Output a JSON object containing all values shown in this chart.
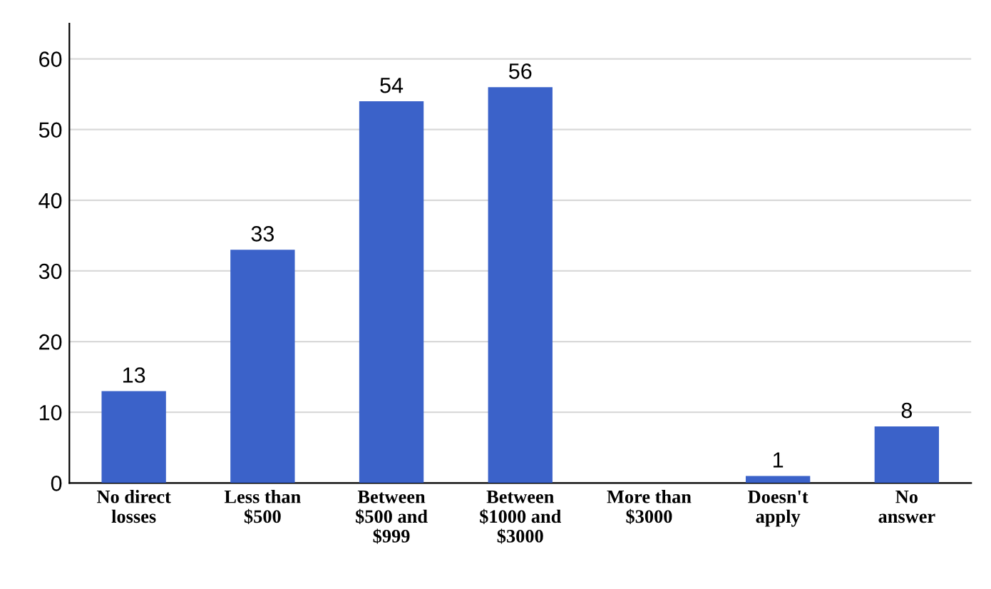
{
  "chart_data": {
    "type": "bar",
    "categories": [
      "No direct\nlosses",
      "Less than\n$500",
      "Between\n$500 and\n$999",
      "Between\n$1000 and\n$3000",
      "More than\n$3000",
      "Doesn't\napply",
      "No\nanswer"
    ],
    "values": [
      13,
      33,
      54,
      56,
      null,
      1,
      8
    ],
    "color": "#3b62c9",
    "ylim": [
      0,
      65
    ],
    "yticks": [
      0,
      10,
      20,
      30,
      40,
      50,
      60
    ],
    "grid": "y",
    "data_labels": true
  }
}
